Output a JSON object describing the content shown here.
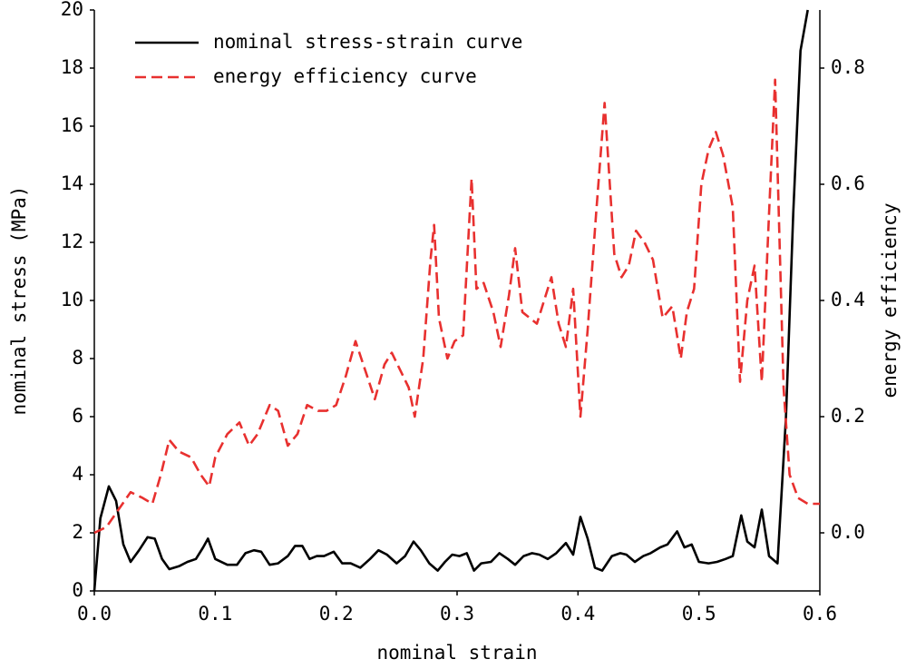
{
  "chart_data": {
    "type": "line",
    "xlabel": "nominal strain",
    "ylabel": "nominal stress (MPa)",
    "y2label": "energy efficiency",
    "xlim": [
      0,
      0.6
    ],
    "xticks": [
      {
        "value": 0,
        "label": "0.0"
      },
      0.1,
      0.2,
      0.3,
      0.4,
      0.5,
      0.6
    ],
    "ylim": [
      0,
      20
    ],
    "yticks": [
      0,
      2,
      4,
      6,
      8,
      10,
      12,
      14,
      16,
      18,
      20
    ],
    "y2lim": [
      -0.1,
      0.9
    ],
    "y2ticks": [
      {
        "value": 0,
        "label": "0.0"
      },
      0.2,
      0.4,
      0.6,
      0.8
    ],
    "legend": "upper left",
    "grid": false,
    "series": [
      {
        "name": "nominal stress-strain curve",
        "color": "#000000",
        "dash": false,
        "x": [
          0,
          0.005,
          0.012,
          0.018,
          0.024,
          0.03,
          0.037,
          0.044,
          0.05,
          0.056,
          0.062,
          0.07,
          0.077,
          0.084,
          0.09,
          0.094,
          0.1,
          0.11,
          0.118,
          0.125,
          0.132,
          0.138,
          0.145,
          0.152,
          0.16,
          0.166,
          0.172,
          0.178,
          0.184,
          0.19,
          0.198,
          0.205,
          0.212,
          0.22,
          0.228,
          0.235,
          0.242,
          0.25,
          0.257,
          0.264,
          0.27,
          0.277,
          0.284,
          0.29,
          0.296,
          0.302,
          0.308,
          0.314,
          0.32,
          0.328,
          0.335,
          0.342,
          0.348,
          0.355,
          0.362,
          0.368,
          0.375,
          0.382,
          0.39,
          0.396,
          0.402,
          0.408,
          0.414,
          0.42,
          0.428,
          0.435,
          0.44,
          0.447,
          0.454,
          0.46,
          0.468,
          0.474,
          0.482,
          0.488,
          0.494,
          0.5,
          0.508,
          0.515,
          0.522,
          0.528,
          0.535,
          0.54,
          0.546,
          0.552,
          0.558,
          0.565,
          0.572,
          0.578,
          0.584,
          0.59
        ],
        "values": [
          0,
          2.5,
          3.6,
          3.1,
          1.6,
          1.0,
          1.4,
          1.85,
          1.8,
          1.1,
          0.75,
          0.85,
          1.0,
          1.1,
          1.5,
          1.8,
          1.1,
          0.9,
          0.9,
          1.3,
          1.4,
          1.35,
          0.9,
          0.95,
          1.2,
          1.55,
          1.55,
          1.1,
          1.2,
          1.2,
          1.35,
          0.95,
          0.95,
          0.8,
          1.1,
          1.4,
          1.25,
          0.95,
          1.2,
          1.7,
          1.4,
          0.95,
          0.7,
          1.0,
          1.25,
          1.2,
          1.3,
          0.7,
          0.95,
          1.0,
          1.3,
          1.1,
          0.9,
          1.2,
          1.3,
          1.25,
          1.1,
          1.3,
          1.65,
          1.25,
          2.55,
          1.8,
          0.8,
          0.7,
          1.2,
          1.3,
          1.25,
          1.0,
          1.2,
          1.3,
          1.5,
          1.6,
          2.05,
          1.5,
          1.6,
          1.0,
          0.95,
          1.0,
          1.1,
          1.2,
          2.6,
          1.7,
          1.5,
          2.8,
          1.2,
          0.95,
          6,
          13,
          18.6,
          20
        ]
      },
      {
        "name": "energy efficiency curve",
        "color": "#e8302f",
        "dash": true,
        "axis": "y2",
        "x": [
          0,
          0.01,
          0.02,
          0.03,
          0.04,
          0.048,
          0.055,
          0.062,
          0.07,
          0.08,
          0.088,
          0.095,
          0.1,
          0.11,
          0.12,
          0.128,
          0.135,
          0.145,
          0.152,
          0.16,
          0.168,
          0.176,
          0.185,
          0.192,
          0.2,
          0.208,
          0.216,
          0.224,
          0.232,
          0.24,
          0.246,
          0.253,
          0.26,
          0.265,
          0.272,
          0.278,
          0.281,
          0.285,
          0.292,
          0.298,
          0.305,
          0.312,
          0.316,
          0.322,
          0.33,
          0.336,
          0.343,
          0.348,
          0.354,
          0.36,
          0.366,
          0.372,
          0.378,
          0.384,
          0.39,
          0.396,
          0.402,
          0.408,
          0.415,
          0.422,
          0.43,
          0.436,
          0.442,
          0.448,
          0.455,
          0.462,
          0.47,
          0.478,
          0.485,
          0.49,
          0.496,
          0.502,
          0.508,
          0.514,
          0.52,
          0.528,
          0.534,
          0.54,
          0.546,
          0.552,
          0.558,
          0.563,
          0.57,
          0.575,
          0.582,
          0.59,
          0.6
        ],
        "values": [
          0.0,
          0.01,
          0.04,
          0.07,
          0.06,
          0.05,
          0.1,
          0.16,
          0.14,
          0.13,
          0.1,
          0.08,
          0.13,
          0.17,
          0.19,
          0.15,
          0.17,
          0.22,
          0.21,
          0.15,
          0.17,
          0.22,
          0.21,
          0.21,
          0.22,
          0.27,
          0.33,
          0.28,
          0.23,
          0.29,
          0.31,
          0.28,
          0.25,
          0.2,
          0.3,
          0.47,
          0.53,
          0.37,
          0.3,
          0.33,
          0.34,
          0.61,
          0.42,
          0.43,
          0.38,
          0.32,
          0.41,
          0.49,
          0.38,
          0.37,
          0.36,
          0.4,
          0.44,
          0.36,
          0.32,
          0.42,
          0.2,
          0.35,
          0.55,
          0.74,
          0.48,
          0.44,
          0.46,
          0.52,
          0.5,
          0.47,
          0.37,
          0.39,
          0.3,
          0.38,
          0.42,
          0.6,
          0.66,
          0.69,
          0.65,
          0.56,
          0.26,
          0.4,
          0.46,
          0.26,
          0.55,
          0.78,
          0.25,
          0.1,
          0.06,
          0.05,
          0.05
        ]
      }
    ]
  }
}
